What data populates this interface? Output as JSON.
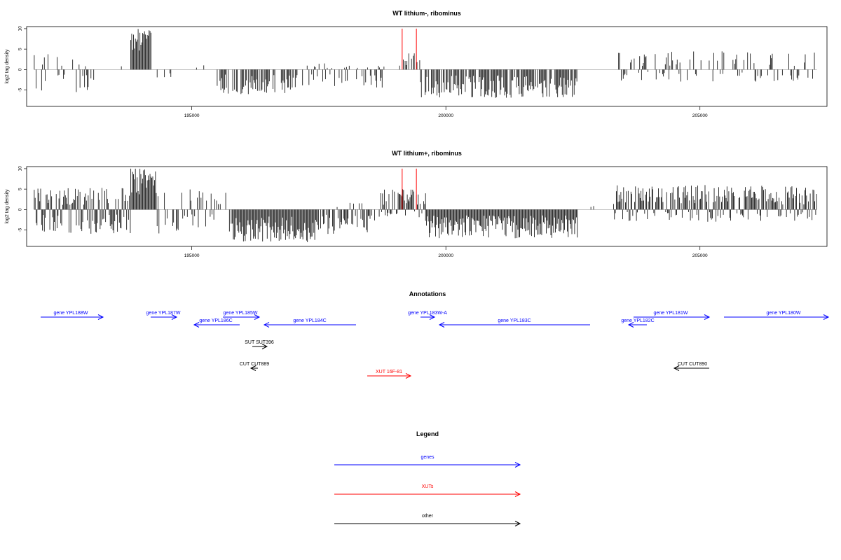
{
  "colors": {
    "gene": "#0000ff",
    "xut": "#ff0000",
    "other": "#000000",
    "axis": "#000000",
    "bar": "#000000"
  },
  "chart_data": [
    {
      "type": "bar",
      "title": "WT lithium-, ribominus",
      "ylabel": "log2 tag density",
      "xlim": [
        191750,
        207500
      ],
      "ylim": [
        -9,
        10.5
      ],
      "xticks": [
        195000,
        200000,
        205000
      ],
      "yticks": [
        -5,
        0,
        5,
        10
      ],
      "markers": [
        199140,
        199420
      ],
      "regions": [
        {
          "start": 191900,
          "end": 193100,
          "min": -5.5,
          "max": 4,
          "density": 0.35
        },
        {
          "start": 193200,
          "end": 193800,
          "min": 0,
          "max": 2,
          "density": 0.04
        },
        {
          "start": 193800,
          "end": 194200,
          "min": 0,
          "max": 10,
          "density": 1,
          "fill": true
        },
        {
          "start": 194300,
          "end": 195400,
          "min": -2,
          "max": 1.5,
          "density": 0.08
        },
        {
          "start": 195500,
          "end": 197000,
          "min": -6,
          "max": -0.5,
          "density": 0.7
        },
        {
          "start": 197000,
          "end": 198800,
          "min": -4.5,
          "max": 1.5,
          "density": 0.45
        },
        {
          "start": 199000,
          "end": 199500,
          "min": 0,
          "max": 4,
          "density": 0.6
        },
        {
          "start": 199500,
          "end": 202600,
          "min": -7,
          "max": -0.5,
          "density": 0.8
        },
        {
          "start": 203400,
          "end": 207300,
          "min": -3,
          "max": 4.5,
          "density": 0.4
        }
      ]
    },
    {
      "type": "bar",
      "title": "WT lithium+, ribominus",
      "ylabel": "log2 tag density",
      "xlim": [
        191750,
        207500
      ],
      "ylim": [
        -9,
        10.5
      ],
      "xticks": [
        195000,
        200000,
        205000
      ],
      "yticks": [
        -5,
        0,
        5,
        10
      ],
      "markers": [
        199140,
        199420
      ],
      "regions": [
        {
          "start": 191900,
          "end": 193800,
          "min": -6,
          "max": 5.5,
          "density": 1
        },
        {
          "start": 193800,
          "end": 194300,
          "min": 0,
          "max": 10,
          "density": 1,
          "fill": true
        },
        {
          "start": 194300,
          "end": 195800,
          "min": -6,
          "max": 5,
          "density": 0.5
        },
        {
          "start": 195800,
          "end": 197500,
          "min": -8,
          "max": 0,
          "density": 1
        },
        {
          "start": 197500,
          "end": 198700,
          "min": -6,
          "max": 2,
          "density": 0.6
        },
        {
          "start": 198700,
          "end": 199600,
          "min": -2,
          "max": 5,
          "density": 0.9
        },
        {
          "start": 199600,
          "end": 202600,
          "min": -7,
          "max": 0,
          "density": 1
        },
        {
          "start": 202800,
          "end": 203300,
          "min": 0,
          "max": 1,
          "density": 0.05
        },
        {
          "start": 203300,
          "end": 207300,
          "min": -3,
          "max": 6,
          "density": 0.9
        }
      ]
    }
  ],
  "annotations": {
    "title": "Annotations",
    "features": [
      {
        "label": "gene YPL188W",
        "type": "gene",
        "dir": "right"
      },
      {
        "label": "gene YPL187W",
        "type": "gene",
        "dir": "right"
      },
      {
        "label": "gene YPL186C",
        "type": "gene",
        "dir": "left"
      },
      {
        "label": "gene YPL185W",
        "type": "gene",
        "dir": "right"
      },
      {
        "label": "gene YPL184C",
        "type": "gene",
        "dir": "left"
      },
      {
        "label": "gene YPL183W-A",
        "type": "gene",
        "dir": "right"
      },
      {
        "label": "gene YPL183C",
        "type": "gene",
        "dir": "left"
      },
      {
        "label": "gene YPL182C",
        "type": "gene",
        "dir": "left"
      },
      {
        "label": "gene YPL181W",
        "type": "gene",
        "dir": "right"
      },
      {
        "label": "gene YPL180W",
        "type": "gene",
        "dir": "right"
      },
      {
        "label": "SUT SUT396",
        "type": "other",
        "dir": "right"
      },
      {
        "label": "CUT CUT889",
        "type": "other",
        "dir": "left"
      },
      {
        "label": "XUT 16F-81",
        "type": "xut",
        "dir": "right"
      },
      {
        "label": "CUT CUT890",
        "type": "other",
        "dir": "left"
      }
    ]
  },
  "legend": {
    "title": "Legend",
    "items": [
      {
        "label": "genes",
        "type": "gene"
      },
      {
        "label": "XUTs",
        "type": "xut"
      },
      {
        "label": "other",
        "type": "other"
      }
    ]
  }
}
